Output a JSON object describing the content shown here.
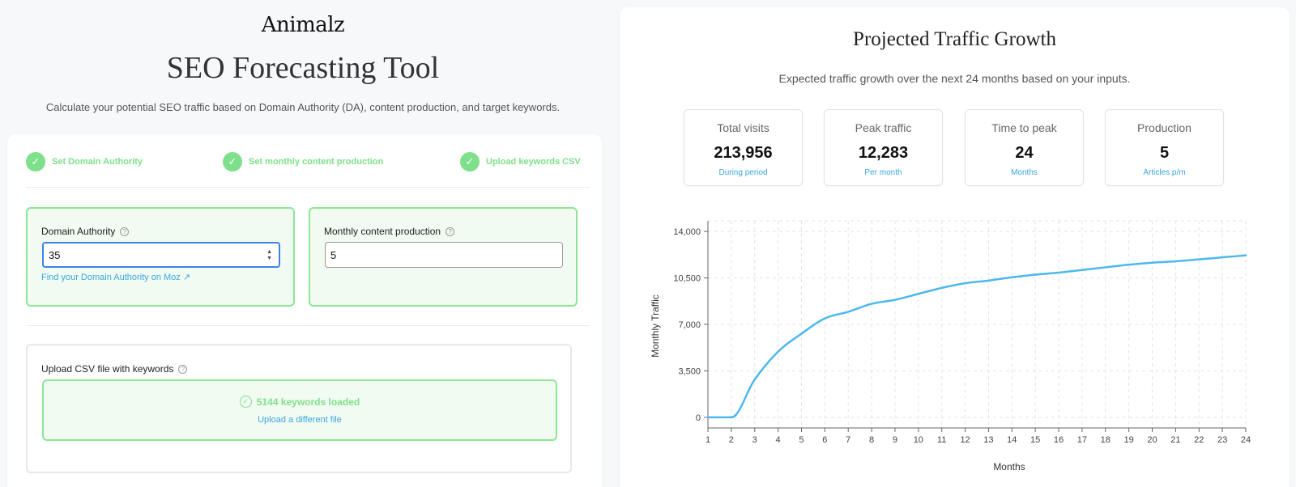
{
  "header": {
    "logo": "Animalz",
    "title": "SEO Forecasting Tool",
    "subtitle": "Calculate your potential SEO traffic based on Domain Authority (DA), content production, and target keywords."
  },
  "steps": [
    {
      "label": "Set Domain Authority"
    },
    {
      "label": "Set monthly content production"
    },
    {
      "label": "Upload keywords CSV"
    }
  ],
  "domain_authority": {
    "label": "Domain Authority",
    "value": "35",
    "link": "Find your Domain Authority on Moz ↗"
  },
  "content_production": {
    "label": "Monthly content production",
    "value": "5"
  },
  "upload": {
    "label": "Upload CSV file with keywords",
    "status": "5144 keywords loaded",
    "link": "Upload a different file"
  },
  "panel": {
    "title": "Projected Traffic Growth",
    "subtitle": "Expected traffic growth over the next 24 months based on your inputs."
  },
  "stats": [
    {
      "label": "Total visits",
      "value": "213,956",
      "sub": "During period"
    },
    {
      "label": "Peak traffic",
      "value": "12,283",
      "sub": "Per month"
    },
    {
      "label": "Time to peak",
      "value": "24",
      "sub": "Months"
    },
    {
      "label": "Production",
      "value": "5",
      "sub": "Articles p/m"
    }
  ],
  "colors": {
    "accent_green": "#7ee08a",
    "link_blue": "#3aa6e0",
    "line_blue": "#4cb8ec"
  },
  "chart_data": {
    "type": "line",
    "xlabel": "Months",
    "ylabel": "Monthly Traffic",
    "x": [
      1,
      2,
      3,
      4,
      5,
      6,
      7,
      8,
      9,
      10,
      11,
      12,
      13,
      14,
      15,
      16,
      17,
      18,
      19,
      20,
      21,
      22,
      23,
      24
    ],
    "series": [
      {
        "values": [
          0,
          0,
          2850,
          4950,
          6300,
          7450,
          7950,
          8550,
          8850,
          9300,
          9750,
          10100,
          10300,
          10550,
          10750,
          10900,
          11100,
          11300,
          11500,
          11650,
          11750,
          11900,
          12050,
          12200
        ]
      }
    ],
    "y_ticks": [
      0,
      3500,
      7000,
      10500,
      14000
    ],
    "y_tick_labels": [
      "0",
      "3,500",
      "7,000",
      "10,500",
      "14,000"
    ],
    "xlim": [
      1,
      24
    ],
    "ylim": [
      -800,
      14800
    ],
    "grid": true
  }
}
